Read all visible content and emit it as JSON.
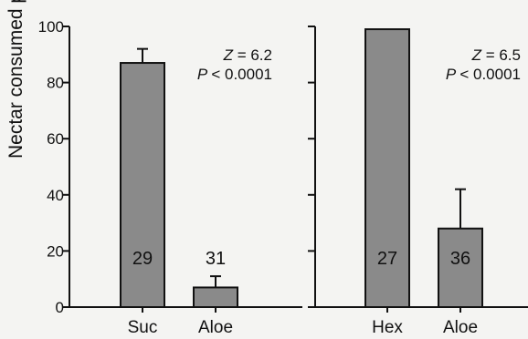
{
  "chart_data": {
    "type": "bar",
    "ylabel": "Nectar consumed per probe (%)",
    "ylim": [
      0,
      100
    ],
    "yticks": [
      "0",
      "20",
      "40",
      "60",
      "80",
      "100"
    ],
    "bar_color": "#8a8a8a",
    "panels": [
      {
        "categories": [
          "Suc",
          "Aloe"
        ],
        "values": [
          87,
          7
        ],
        "error_upper": [
          92,
          11
        ],
        "n": [
          "29",
          "31"
        ],
        "stat_z": "= 6.2",
        "stat_p": "< 0.0001"
      },
      {
        "categories": [
          "Hex",
          "Aloe"
        ],
        "values": [
          99,
          28
        ],
        "error_upper": [
          99,
          42
        ],
        "n": [
          "27",
          "36"
        ],
        "stat_z": "= 6.5",
        "stat_p": "< 0.0001"
      }
    ]
  }
}
